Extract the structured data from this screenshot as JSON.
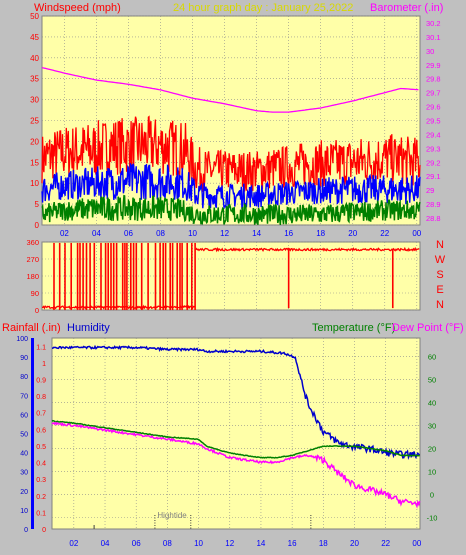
{
  "header": {
    "left_label": "Windspeed (mph)",
    "title": "24 hour graph day : January 25,2022",
    "right_label": "Barometer (.in)"
  },
  "colors": {
    "background": "#c0c0c0",
    "plot_background": "#ffffa8",
    "grid": "#8c8c8c",
    "wind_gust": "#ff0000",
    "wind_avg": "#0000ff",
    "wind_low": "#008000",
    "barometer": "#ff00ff",
    "direction": "#ff0000",
    "rain": "#ff0000",
    "humidity": "#0000cc",
    "temperature": "#008000",
    "dewpoint": "#ff00ff"
  },
  "x_ticks": [
    "02",
    "04",
    "06",
    "08",
    "10",
    "12",
    "14",
    "16",
    "18",
    "20",
    "22",
    "00"
  ],
  "chart_data": [
    {
      "type": "line",
      "id": "wind-barometer",
      "title": "24 hour graph day : January 25,2022",
      "x": "hour of day",
      "xlim": [
        0.6,
        24.2
      ],
      "y_left": {
        "label": "Windspeed (mph)",
        "ticks": [
          "0",
          "5",
          "10",
          "15",
          "20",
          "25",
          "30",
          "35",
          "40",
          "45",
          "50"
        ],
        "ylim": [
          0,
          50
        ]
      },
      "y_right": {
        "label": "Barometer (.in)",
        "ticks": [
          "28.8",
          "28.9",
          "29",
          "29.1",
          "29.2",
          "29.3",
          "29.4",
          "29.5",
          "29.6",
          "29.7",
          "29.8",
          "29.9",
          "30",
          "30.1",
          "30.2"
        ],
        "ylim": [
          28.75,
          30.25
        ]
      },
      "series": [
        {
          "kind": "wind-gust",
          "axis": "left",
          "band": [
            [
              0.6,
              10,
              22
            ],
            [
              2,
              11,
              24
            ],
            [
              4,
              11,
              25
            ],
            [
              5,
              12,
              26
            ],
            [
              6,
              12,
              26
            ],
            [
              8,
              12,
              26
            ],
            [
              9.5,
              11,
              25
            ],
            [
              10.2,
              8,
              19
            ],
            [
              11,
              8,
              18
            ],
            [
              14,
              8,
              18
            ],
            [
              17,
              9,
              20
            ],
            [
              20,
              9,
              21
            ],
            [
              22,
              10,
              22
            ],
            [
              24.2,
              9,
              21
            ]
          ]
        },
        {
          "kind": "wind-avg",
          "axis": "left",
          "band": [
            [
              0.6,
              5,
              12
            ],
            [
              2,
              6,
              13
            ],
            [
              4,
              6,
              14
            ],
            [
              6,
              6,
              15
            ],
            [
              8,
              6,
              15
            ],
            [
              9.5,
              6,
              14
            ],
            [
              10.2,
              4,
              11
            ],
            [
              11,
              4,
              10
            ],
            [
              14,
              4,
              10
            ],
            [
              17,
              5,
              11
            ],
            [
              20,
              5,
              12
            ],
            [
              22,
              5,
              12
            ],
            [
              24.2,
              5,
              12
            ]
          ]
        },
        {
          "kind": "wind-low",
          "axis": "left",
          "band": [
            [
              0.6,
              0,
              5
            ],
            [
              2,
              1,
              6
            ],
            [
              4,
              1,
              7
            ],
            [
              6,
              1,
              7
            ],
            [
              8,
              1,
              7
            ],
            [
              9.5,
              1,
              6
            ],
            [
              10.2,
              0,
              5
            ],
            [
              14,
              0,
              5
            ],
            [
              18,
              0,
              5
            ],
            [
              22,
              1,
              6
            ],
            [
              24.2,
              1,
              6
            ]
          ]
        },
        {
          "kind": "barometer",
          "axis": "right",
          "points": [
            [
              0.6,
              29.88
            ],
            [
              2,
              29.84
            ],
            [
              4,
              29.79
            ],
            [
              6,
              29.76
            ],
            [
              8,
              29.72
            ],
            [
              10,
              29.66
            ],
            [
              12,
              29.62
            ],
            [
              14,
              29.57
            ],
            [
              15,
              29.56
            ],
            [
              16,
              29.56
            ],
            [
              18,
              29.59
            ],
            [
              20,
              29.64
            ],
            [
              22,
              29.7
            ],
            [
              23,
              29.73
            ],
            [
              24.2,
              29.72
            ]
          ]
        }
      ]
    },
    {
      "type": "line",
      "id": "wind-direction",
      "x": "hour of day",
      "xlim": [
        0.6,
        24.2
      ],
      "y_left": {
        "ticks": [
          "0",
          "90",
          "180",
          "270",
          "360"
        ],
        "ylim": [
          0,
          360
        ]
      },
      "compass_labels": [
        "N",
        "W",
        "S",
        "E",
        "N"
      ],
      "series": [
        {
          "kind": "direction-noise-low",
          "range": [
            0.6,
            10.2
          ],
          "base": 15,
          "spread": 12
        },
        {
          "kind": "direction-spikes",
          "range": [
            1.3,
            10.2
          ],
          "top": 355
        },
        {
          "kind": "direction-high",
          "range": [
            10.2,
            24.2
          ],
          "base": 320,
          "spread": 12
        },
        {
          "kind": "direction-drops",
          "x": [
            16,
            22.5
          ],
          "low": 10
        }
      ]
    },
    {
      "type": "line",
      "id": "rain-humidity-temperature",
      "x": "hour of day",
      "xlim": [
        0.6,
        24.2
      ],
      "y_rain": {
        "label": "Rainfall (.in)",
        "ticks": [
          "0",
          "0.1",
          "0.2",
          "0.3",
          "0.4",
          "0.5",
          "0.6",
          "0.7",
          "0.8",
          "0.9",
          "1",
          "1.1"
        ],
        "ylim": [
          0,
          1.15
        ]
      },
      "y_humidity": {
        "label": "Humidity",
        "ticks": [
          "0",
          "10",
          "20",
          "30",
          "40",
          "50",
          "60",
          "70",
          "80",
          "90",
          "100"
        ],
        "ylim": [
          0,
          100
        ]
      },
      "y_right": {
        "label_temp": "Temperature (°F)",
        "label_dew": "Dew Point (°F)",
        "ticks": [
          "-10",
          "0",
          "10",
          "20",
          "30",
          "40",
          "50",
          "60"
        ],
        "ylim": [
          -15,
          68
        ]
      },
      "annotation": "Hightide",
      "hightide_x": [
        7.2,
        9.5,
        17.2
      ],
      "series": [
        {
          "kind": "humidity",
          "axis": "humidity",
          "points": [
            [
              0.6,
              95
            ],
            [
              2,
              95
            ],
            [
              4,
              95
            ],
            [
              6,
              95
            ],
            [
              8,
              94
            ],
            [
              10,
              94
            ],
            [
              10.5,
              93
            ],
            [
              12,
              93
            ],
            [
              14,
              93
            ],
            [
              15.5,
              92
            ],
            [
              16.2,
              90
            ],
            [
              16.5,
              80
            ],
            [
              17,
              66
            ],
            [
              18,
              51
            ],
            [
              19,
              45
            ],
            [
              20,
              43
            ],
            [
              21,
              42
            ],
            [
              22,
              40
            ],
            [
              23,
              39
            ],
            [
              24.2,
              39
            ]
          ]
        },
        {
          "kind": "temperature",
          "axis": "right",
          "points": [
            [
              0.6,
              32
            ],
            [
              2,
              31
            ],
            [
              4,
              29
            ],
            [
              6,
              27
            ],
            [
              8,
              25
            ],
            [
              10,
              24
            ],
            [
              10.5,
              21
            ],
            [
              12,
              18
            ],
            [
              14,
              16
            ],
            [
              15,
              16
            ],
            [
              16,
              17
            ],
            [
              17,
              19
            ],
            [
              18,
              21
            ],
            [
              20,
              21
            ],
            [
              22,
              19
            ],
            [
              23,
              17
            ],
            [
              24.2,
              17
            ]
          ]
        },
        {
          "kind": "dewpoint",
          "axis": "right",
          "points": [
            [
              0.6,
              31
            ],
            [
              2,
              30
            ],
            [
              4,
              28
            ],
            [
              6,
              26
            ],
            [
              8,
              24
            ],
            [
              10,
              22
            ],
            [
              10.5,
              20
            ],
            [
              12,
              16
            ],
            [
              14,
              14
            ],
            [
              15,
              14
            ],
            [
              16,
              16
            ],
            [
              17,
              17
            ],
            [
              18,
              15
            ],
            [
              19,
              9
            ],
            [
              20,
              4
            ],
            [
              21,
              2
            ],
            [
              22,
              0
            ],
            [
              23,
              -3
            ],
            [
              24.2,
              -4
            ]
          ]
        }
      ]
    }
  ]
}
